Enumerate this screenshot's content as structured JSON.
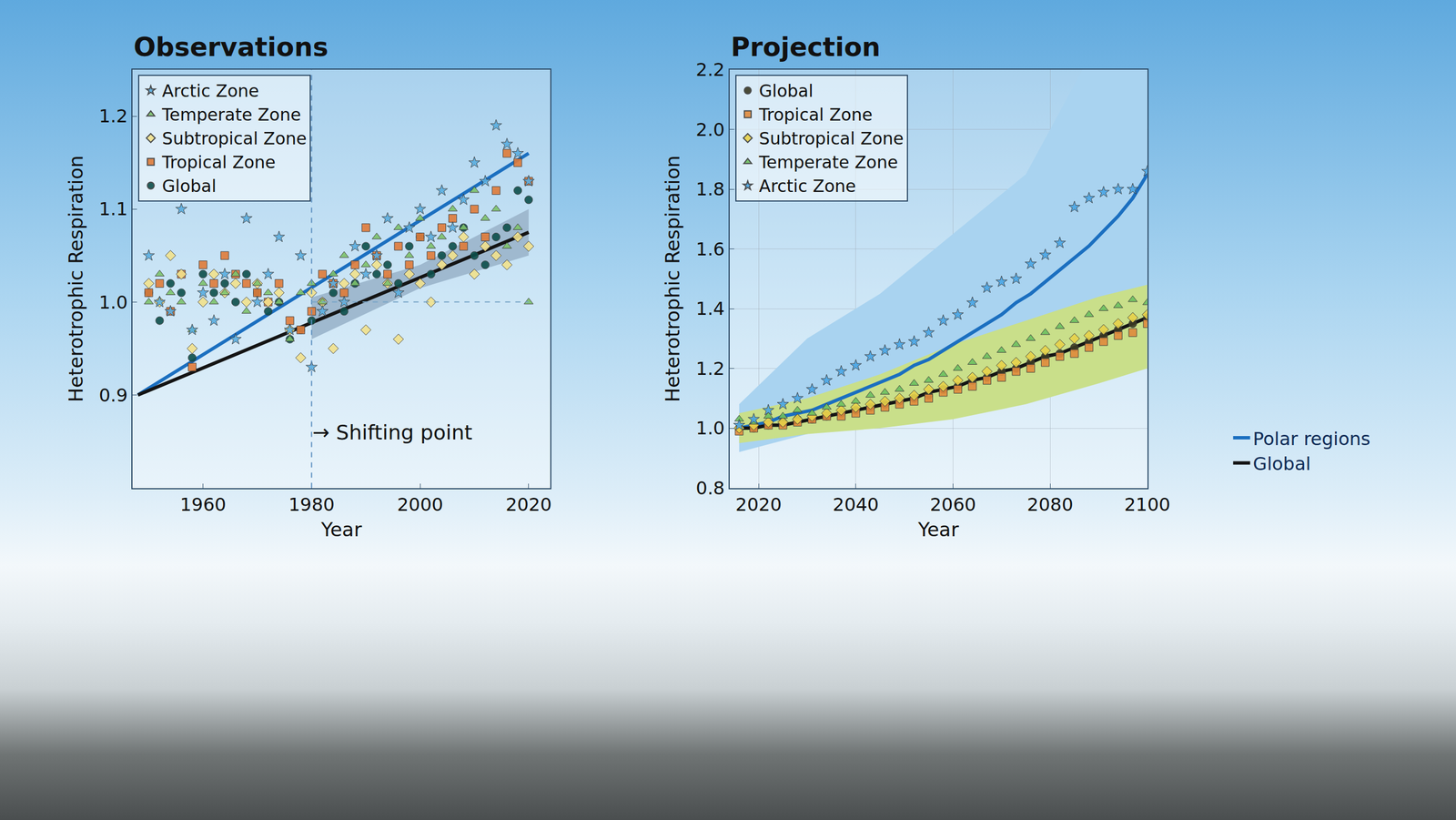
{
  "chart_data": [
    {
      "type": "scatter",
      "title": "Observations",
      "x_label": "Year",
      "y_label": "Heterotrophic Respiration",
      "xlim": [
        1947,
        2024
      ],
      "xticks": [
        1960,
        1980,
        2000,
        2020
      ],
      "ylim": [
        0.8,
        1.25
      ],
      "yticks": [
        0.9,
        {
          "value": 1,
          "label": "1.0"
        },
        1.1,
        1.2
      ],
      "grid": false,
      "legend": "top left",
      "vlines": [
        1980
      ],
      "hlines": [
        {
          "y": 1,
          "x": [
            1980,
            2020
          ]
        }
      ],
      "annotations": [
        {
          "text": "→ Shifting point",
          "x": 1980,
          "y": 0.86
        }
      ],
      "x": [
        1950,
        1952,
        1954,
        1956,
        1958,
        1960,
        1962,
        1964,
        1966,
        1968,
        1970,
        1972,
        1974,
        1976,
        1978,
        1980,
        1982,
        1984,
        1986,
        1988,
        1990,
        1992,
        1994,
        1996,
        1998,
        2000,
        2002,
        2004,
        2006,
        2008,
        2010,
        2012,
        2014,
        2016,
        2018,
        2020
      ],
      "bands": [
        {
          "color": "#9fb9cf",
          "x": [
            1980,
            2000,
            2020
          ],
          "lower": [
            0.96,
            1.015,
            1.05
          ],
          "upper": [
            1.005,
            1.04,
            1.1
          ]
        }
      ],
      "series": [
        {
          "name": "Global",
          "type": "scatter",
          "marker": "circle",
          "color": "#0d4f4b",
          "values": [
            1.01,
            0.98,
            1.02,
            1.01,
            0.94,
            1.03,
            1.01,
            1.02,
            1.0,
            1.03,
            1.01,
            0.99,
            1.0,
            0.96,
            0.97,
            0.98,
            1.0,
            1.01,
            0.99,
            1.02,
            1.06,
            1.03,
            1.04,
            1.02,
            1.06,
            1.07,
            1.03,
            1.05,
            1.06,
            1.08,
            1.05,
            1.04,
            1.07,
            1.08,
            1.12,
            1.11
          ]
        },
        {
          "name": "Tropical Zone",
          "type": "scatter",
          "marker": "square",
          "color": "#e07b39",
          "values": [
            1.01,
            1.02,
            0.99,
            1.03,
            0.93,
            1.04,
            1.02,
            1.05,
            1.03,
            1.02,
            1.01,
            1.0,
            1.02,
            0.98,
            0.97,
            0.99,
            1.03,
            1.02,
            1.01,
            1.04,
            1.08,
            1.05,
            1.03,
            1.06,
            1.04,
            1.07,
            1.05,
            1.08,
            1.09,
            1.06,
            1.1,
            1.07,
            1.12,
            1.16,
            1.15,
            1.13
          ]
        },
        {
          "name": "Subtropical Zone",
          "type": "scatter",
          "marker": "diamond",
          "color": "#f2e28c",
          "values": [
            1.02,
            1.0,
            1.05,
            1.03,
            0.95,
            1.0,
            1.03,
            1.01,
            1.02,
            1.0,
            1.02,
            1.0,
            1.01,
            0.97,
            0.94,
            1.01,
            1.0,
            0.95,
            1.02,
            1.03,
            0.97,
            1.04,
            1.02,
            0.96,
            1.03,
            1.02,
            1.0,
            1.04,
            1.05,
            1.07,
            1.03,
            1.06,
            1.05,
            1.04,
            1.07,
            1.06
          ]
        },
        {
          "name": "Temperate Zone",
          "type": "scatter",
          "marker": "triangle-up",
          "color": "#7dc26b",
          "values": [
            1.0,
            1.03,
            1.01,
            1.0,
            0.97,
            1.02,
            1.0,
            1.01,
            1.03,
            0.99,
            1.02,
            1.01,
            1.0,
            0.96,
            1.01,
            1.02,
            1.0,
            1.03,
            1.05,
            1.02,
            1.04,
            1.07,
            1.02,
            1.08,
            1.05,
            1.09,
            1.06,
            1.07,
            1.1,
            1.08,
            1.12,
            1.09,
            1.1,
            1.06,
            1.08,
            1.0
          ]
        },
        {
          "name": "Arctic Zone",
          "type": "scatter",
          "marker": "star",
          "color": "#5aaee0",
          "values": [
            1.05,
            1.0,
            0.99,
            1.1,
            0.97,
            1.01,
            0.98,
            1.03,
            0.96,
            1.09,
            1.0,
            1.03,
            1.07,
            0.97,
            1.05,
            0.93,
            0.99,
            1.02,
            1.0,
            1.06,
            1.03,
            1.05,
            1.09,
            1.01,
            1.08,
            1.1,
            1.07,
            1.12,
            1.08,
            1.11,
            1.15,
            1.13,
            1.19,
            1.17,
            1.16,
            1.13
          ]
        },
        {
          "name": "Polar regions",
          "type": "line",
          "line_style": "solid",
          "color": "#1b6fc0",
          "x": [
            1948,
            2020
          ],
          "values": [
            0.9,
            1.16
          ]
        },
        {
          "name": "Global",
          "type": "line",
          "line_style": "solid",
          "color": "#141414",
          "x": [
            1948,
            2020
          ],
          "values": [
            0.9,
            1.075
          ]
        }
      ]
    },
    {
      "type": "scatter",
      "title": "Projection",
      "x_label": "Year",
      "y_label": "Heterotrophic Respiration",
      "xlim": [
        2014,
        2100
      ],
      "xticks": [
        2020,
        2040,
        2060,
        2080,
        2100
      ],
      "ylim": [
        0.8,
        2.2
      ],
      "yticks": [
        0.8,
        {
          "value": 1,
          "label": "1.0"
        },
        1.2,
        1.4,
        1.6,
        1.8,
        {
          "value": 2,
          "label": "2.0"
        },
        2.2
      ],
      "grid": true,
      "legend": "top left",
      "x": [
        2016,
        2019,
        2022,
        2025,
        2028,
        2031,
        2034,
        2037,
        2040,
        2043,
        2046,
        2049,
        2052,
        2055,
        2058,
        2061,
        2064,
        2067,
        2070,
        2073,
        2076,
        2079,
        2082,
        2085,
        2088,
        2091,
        2094,
        2097,
        2100
      ],
      "bands": [
        {
          "color": "#a9d3f0",
          "x": [
            2016,
            2030,
            2045,
            2060,
            2075,
            2090,
            2100
          ],
          "lower": [
            0.92,
            0.98,
            1.05,
            1.1,
            1.18,
            1.3,
            1.4
          ],
          "upper": [
            1.08,
            1.3,
            1.45,
            1.65,
            1.85,
            2.3,
            2.4
          ]
        },
        {
          "color": "#c9df8a",
          "x": [
            2016,
            2030,
            2045,
            2060,
            2075,
            2090,
            2100
          ],
          "lower": [
            0.95,
            0.98,
            1.0,
            1.03,
            1.08,
            1.15,
            1.2
          ],
          "upper": [
            1.05,
            1.1,
            1.18,
            1.28,
            1.36,
            1.44,
            1.48
          ]
        }
      ],
      "series": [
        {
          "name": "Global",
          "type": "scatter",
          "marker": "circle",
          "color": "#3b3a24",
          "values": [
            1.0,
            1.0,
            1.01,
            1.02,
            1.03,
            1.03,
            1.04,
            1.05,
            1.06,
            1.07,
            1.08,
            1.09,
            1.1,
            1.11,
            1.13,
            1.14,
            1.16,
            1.17,
            1.19,
            1.2,
            1.22,
            1.24,
            1.25,
            1.27,
            1.29,
            1.31,
            1.33,
            1.35,
            1.37
          ]
        },
        {
          "name": "Tropical Zone",
          "type": "scatter",
          "marker": "square",
          "color": "#e08a3c",
          "values": [
            0.99,
            1.0,
            1.01,
            1.01,
            1.02,
            1.03,
            1.04,
            1.04,
            1.05,
            1.06,
            1.07,
            1.08,
            1.09,
            1.1,
            1.12,
            1.13,
            1.14,
            1.16,
            1.17,
            1.19,
            1.2,
            1.22,
            1.24,
            1.25,
            1.27,
            1.29,
            1.31,
            1.32,
            1.35
          ]
        },
        {
          "name": "Subtropical Zone",
          "type": "scatter",
          "marker": "diamond",
          "color": "#e8d24a",
          "values": [
            1.0,
            1.01,
            1.02,
            1.02,
            1.03,
            1.04,
            1.05,
            1.06,
            1.07,
            1.08,
            1.09,
            1.1,
            1.11,
            1.13,
            1.14,
            1.16,
            1.17,
            1.19,
            1.21,
            1.22,
            1.24,
            1.26,
            1.28,
            1.3,
            1.31,
            1.33,
            1.35,
            1.37,
            1.38
          ]
        },
        {
          "name": "Temperate Zone",
          "type": "scatter",
          "marker": "triangle-up",
          "color": "#6cc060",
          "values": [
            1.03,
            1.02,
            1.04,
            1.04,
            1.06,
            1.05,
            1.07,
            1.08,
            1.09,
            1.11,
            1.12,
            1.13,
            1.15,
            1.16,
            1.18,
            1.2,
            1.22,
            1.24,
            1.26,
            1.28,
            1.3,
            1.32,
            1.34,
            1.36,
            1.38,
            1.4,
            1.41,
            1.43,
            1.42
          ]
        },
        {
          "name": "Arctic Zone",
          "type": "scatter",
          "marker": "star",
          "color": "#4aa6e6",
          "values": [
            1.01,
            1.03,
            1.06,
            1.08,
            1.1,
            1.13,
            1.16,
            1.19,
            1.21,
            1.24,
            1.26,
            1.28,
            1.29,
            1.32,
            1.36,
            1.38,
            1.42,
            1.47,
            1.49,
            1.5,
            1.55,
            1.58,
            1.62,
            1.74,
            1.77,
            1.79,
            1.8,
            1.8,
            1.86
          ]
        },
        {
          "name": "Polar regions",
          "type": "line",
          "line_style": "solid",
          "color": "#1b6fc0",
          "values": [
            1.0,
            1.01,
            1.02,
            1.04,
            1.05,
            1.06,
            1.08,
            1.1,
            1.12,
            1.14,
            1.16,
            1.18,
            1.21,
            1.23,
            1.26,
            1.29,
            1.32,
            1.35,
            1.38,
            1.42,
            1.45,
            1.49,
            1.53,
            1.57,
            1.61,
            1.66,
            1.71,
            1.77,
            1.85
          ]
        },
        {
          "name": "Global",
          "type": "line",
          "line_style": "solid",
          "color": "#141414",
          "values": [
            1.0,
            1.0,
            1.01,
            1.01,
            1.02,
            1.03,
            1.04,
            1.05,
            1.06,
            1.07,
            1.08,
            1.09,
            1.1,
            1.12,
            1.13,
            1.14,
            1.16,
            1.17,
            1.19,
            1.2,
            1.22,
            1.24,
            1.25,
            1.27,
            1.29,
            1.31,
            1.33,
            1.35,
            1.37
          ]
        }
      ]
    }
  ]
}
